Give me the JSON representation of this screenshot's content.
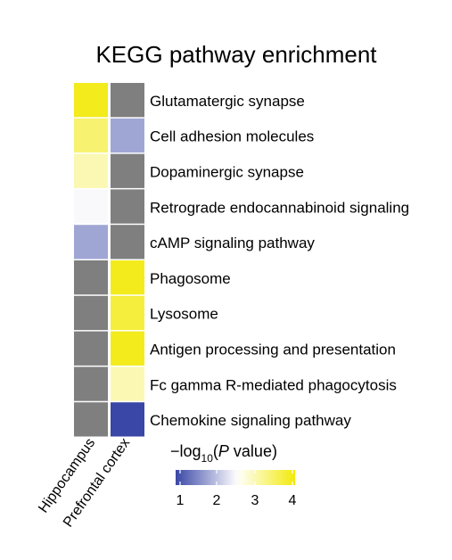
{
  "chart_data": {
    "type": "heatmap",
    "title": "KEGG pathway enrichment",
    "columns": [
      "Hippocampus",
      "Prefrontal cortex"
    ],
    "rows": [
      "Glutamatergic synapse",
      "Cell adhesion molecules",
      "Dopaminergic synapse",
      "Retrograde endocannabinoid signaling",
      "cAMP signaling pathway",
      "Phagosome",
      "Lysosome",
      "Antigen processing and presentation",
      "Fc gamma R-mediated phagocytosis",
      "Chemokine signaling pathway"
    ],
    "values": [
      [
        3.9,
        null
      ],
      [
        3.4,
        1.8
      ],
      [
        3.0,
        null
      ],
      [
        2.5,
        null
      ],
      [
        1.8,
        null
      ],
      [
        null,
        3.9
      ],
      [
        null,
        3.7
      ],
      [
        null,
        3.9
      ],
      [
        null,
        3.0
      ],
      [
        null,
        1.0
      ]
    ],
    "missing_color": "#7f7f7f",
    "colorbar": {
      "title_prefix": "−log",
      "title_subscript": "10",
      "title_open": "(",
      "title_italic": "P",
      "title_rest": " value)",
      "range": [
        1,
        4
      ],
      "ticks": [
        "1",
        "2",
        "3",
        "4"
      ],
      "colors": [
        "#3a47a6",
        "#ffffff",
        "#f2ea0b"
      ],
      "mid": 2.55
    }
  }
}
